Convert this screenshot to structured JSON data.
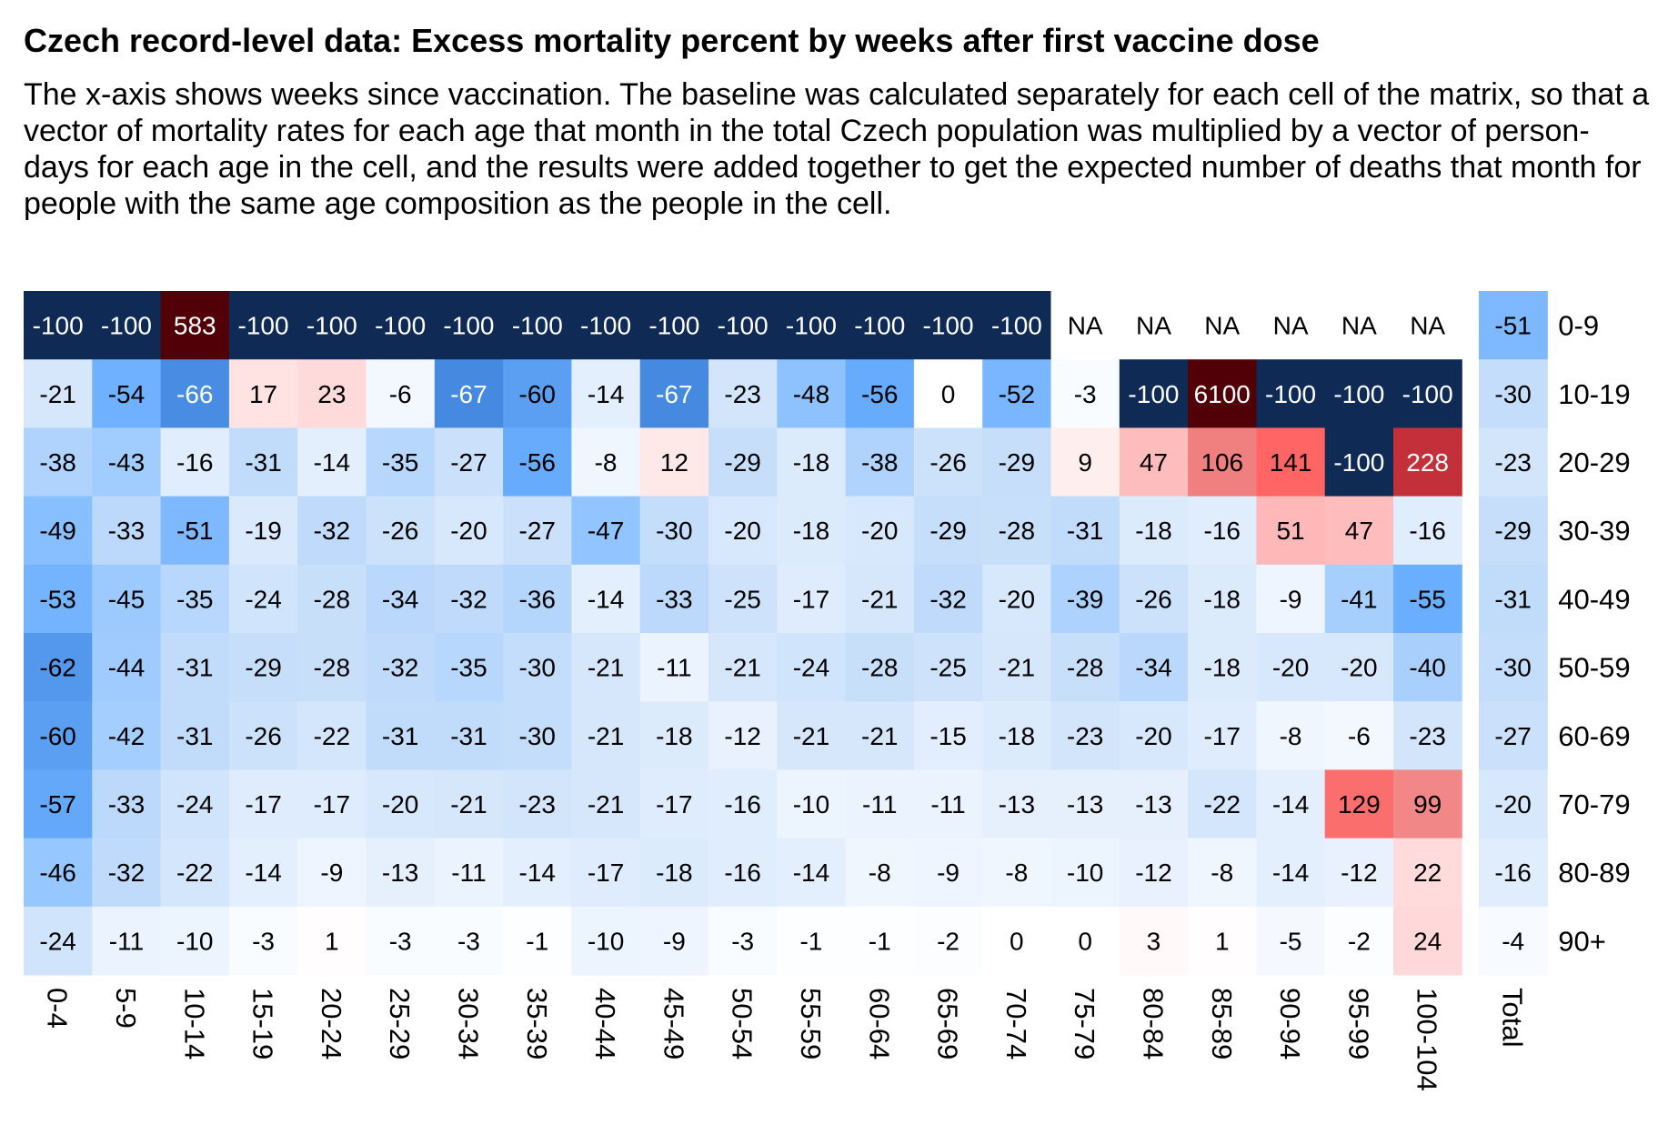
{
  "chart_data": {
    "type": "heatmap",
    "title": "Czech record-level data: Excess mortality percent by weeks after first vaccine dose",
    "subtitle": "The x-axis shows weeks since vaccination. The baseline was calculated separately for each cell of the matrix, so that a vector of mortality rates for each age that month in the total Czech population was multiplied by a vector of person-days for each age in the cell, and the results were added together to get the expected number of deaths that month for people with the same age composition as the people in the cell.",
    "x_categories": [
      "0-4",
      "5-9",
      "10-14",
      "15-19",
      "20-24",
      "25-29",
      "30-34",
      "35-39",
      "40-44",
      "45-49",
      "50-54",
      "55-59",
      "60-64",
      "65-69",
      "70-74",
      "75-79",
      "80-84",
      "85-89",
      "90-94",
      "95-99",
      "100-104"
    ],
    "total_label": "Total",
    "y_categories": [
      "0-9",
      "10-19",
      "20-29",
      "30-39",
      "40-49",
      "50-59",
      "60-69",
      "70-79",
      "80-89",
      "90+"
    ],
    "values": [
      [
        -100,
        -100,
        583,
        -100,
        -100,
        -100,
        -100,
        -100,
        -100,
        -100,
        -100,
        -100,
        -100,
        -100,
        -100,
        "NA",
        "NA",
        "NA",
        "NA",
        "NA",
        "NA"
      ],
      [
        -21,
        -54,
        -66,
        17,
        23,
        -6,
        -67,
        -60,
        -14,
        -67,
        -23,
        -48,
        -56,
        0,
        -52,
        -3,
        -100,
        6100,
        -100,
        -100,
        -100
      ],
      [
        -38,
        -43,
        -16,
        -31,
        -14,
        -35,
        -27,
        -56,
        -8,
        12,
        -29,
        -18,
        -38,
        -26,
        -29,
        9,
        47,
        106,
        141,
        -100,
        228
      ],
      [
        -49,
        -33,
        -51,
        -19,
        -32,
        -26,
        -20,
        -27,
        -47,
        -30,
        -20,
        -18,
        -20,
        -29,
        -28,
        -31,
        -18,
        -16,
        51,
        47,
        -16
      ],
      [
        -53,
        -45,
        -35,
        -24,
        -28,
        -34,
        -32,
        -36,
        -14,
        -33,
        -25,
        -17,
        -21,
        -32,
        -20,
        -39,
        -26,
        -18,
        -9,
        -41,
        -55
      ],
      [
        -62,
        -44,
        -31,
        -29,
        -28,
        -32,
        -35,
        -30,
        -21,
        -11,
        -21,
        -24,
        -28,
        -25,
        -21,
        -28,
        -34,
        -18,
        -20,
        -20,
        -40
      ],
      [
        -60,
        -42,
        -31,
        -26,
        -22,
        -31,
        -31,
        -30,
        -21,
        -18,
        -12,
        -21,
        -21,
        -15,
        -18,
        -23,
        -20,
        -17,
        -8,
        -6,
        -23
      ],
      [
        -57,
        -33,
        -24,
        -17,
        -17,
        -20,
        -21,
        -23,
        -21,
        -17,
        -16,
        -10,
        -11,
        -11,
        -13,
        -13,
        -13,
        -22,
        -14,
        129,
        99
      ],
      [
        -46,
        -32,
        -22,
        -14,
        -9,
        -13,
        -11,
        -14,
        -17,
        -18,
        -16,
        -14,
        -8,
        -9,
        -8,
        -10,
        -12,
        -8,
        -14,
        -12,
        22
      ],
      [
        -24,
        -11,
        -10,
        -3,
        1,
        -3,
        -3,
        -1,
        -10,
        -9,
        -3,
        -1,
        -1,
        -2,
        0,
        0,
        3,
        1,
        -5,
        -2,
        24
      ]
    ],
    "totals": [
      -51,
      -30,
      -23,
      -29,
      -31,
      -30,
      -27,
      -20,
      -16,
      -4
    ],
    "color_scale": {
      "min_color": "#0e2a55",
      "zero_color": "#ffffff",
      "max_color": "#520008",
      "na_color": "#ffffff"
    },
    "legend": "none",
    "grid": false
  }
}
